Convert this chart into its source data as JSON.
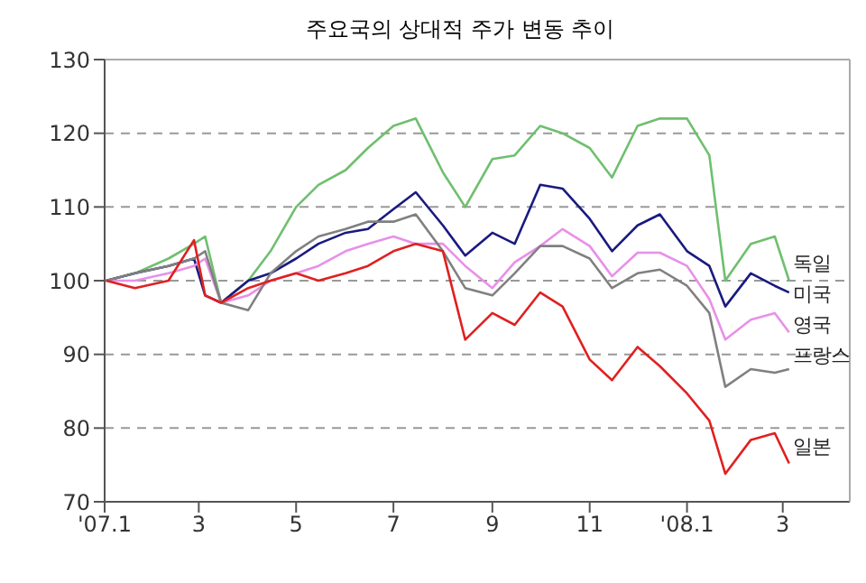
{
  "chart_data": {
    "type": "line",
    "title": "주요국의 상대적 주가 변동 추이",
    "x": [
      "2007-01-02",
      "2007-01-20",
      "2007-02-10",
      "2007-02-26",
      "2007-03-05",
      "2007-03-15",
      "2007-04-01",
      "2007-04-15",
      "2007-05-01",
      "2007-05-15",
      "2007-06-01",
      "2007-06-15",
      "2007-07-01",
      "2007-07-15",
      "2007-08-01",
      "2007-08-15",
      "2007-09-01",
      "2007-09-15",
      "2007-10-01",
      "2007-10-15",
      "2007-11-01",
      "2007-11-15",
      "2007-12-01",
      "2007-12-15",
      "2008-01-01",
      "2008-01-15",
      "2008-01-25",
      "2008-02-10",
      "2008-02-25",
      "2008-03-05"
    ],
    "series": [
      {
        "name": "독일",
        "color": "#6fbf6f",
        "values": [
          100,
          101,
          103,
          105,
          106,
          97,
          100,
          104,
          110,
          113,
          115,
          118,
          121,
          122,
          114.7,
          110,
          116.5,
          117,
          121,
          120,
          118,
          114,
          121,
          122,
          122,
          117,
          100,
          105,
          106,
          100
        ]
      },
      {
        "name": "미국",
        "color": "#1a1a80",
        "values": [
          100,
          101,
          102,
          103,
          98,
          97,
          100,
          101,
          103,
          105,
          106.5,
          107,
          109.7,
          112,
          107.5,
          103.4,
          106.5,
          105,
          113,
          112.5,
          108.4,
          104,
          107.5,
          109,
          104,
          102,
          96.5,
          101,
          99.3,
          98.4
        ]
      },
      {
        "name": "영국",
        "color": "#e890e8",
        "values": [
          100,
          100,
          101,
          102,
          103,
          97,
          98,
          100,
          101,
          102,
          104,
          105,
          106,
          105,
          105,
          102,
          99,
          102.5,
          104.7,
          107,
          104.7,
          100.6,
          103.8,
          103.8,
          102,
          97.5,
          92,
          94.7,
          95.6,
          93
        ]
      },
      {
        "name": "프랑스",
        "color": "#808080",
        "values": [
          100,
          101,
          102,
          103,
          104,
          97,
          96,
          101,
          104,
          106,
          107,
          108,
          108,
          109,
          104,
          99,
          98,
          101,
          104.7,
          104.7,
          103,
          99,
          101,
          101.5,
          99.3,
          95.6,
          85.6,
          88,
          87.5,
          88
        ]
      },
      {
        "name": "일본",
        "color": "#e02020",
        "values": [
          100,
          99,
          100,
          105.5,
          98,
          97,
          99,
          100,
          101,
          100,
          101,
          102,
          104,
          105,
          104,
          92,
          95.6,
          94,
          98.4,
          96.5,
          89.3,
          86.5,
          91,
          88.4,
          84.7,
          81,
          73.8,
          78.4,
          79.3,
          75.2
        ]
      }
    ],
    "xlim": [
      "2007-01-01",
      "2008-04-12"
    ],
    "xticks": [
      {
        "value": "2007-01-01",
        "label": "'07.1"
      },
      {
        "value": "2007-03-01",
        "label": "3"
      },
      {
        "value": "2007-05-01",
        "label": "5"
      },
      {
        "value": "2007-07-01",
        "label": "7"
      },
      {
        "value": "2007-09-01",
        "label": "9"
      },
      {
        "value": "2007-11-01",
        "label": "11"
      },
      {
        "value": "2008-01-01",
        "label": "'08.1"
      },
      {
        "value": "2008-03-01",
        "label": "3"
      }
    ],
    "ylim": [
      70,
      130
    ],
    "yticks": [
      70,
      80,
      90,
      100,
      110,
      120,
      130
    ],
    "grid": "y",
    "marker": "none",
    "line_style": "solid"
  }
}
